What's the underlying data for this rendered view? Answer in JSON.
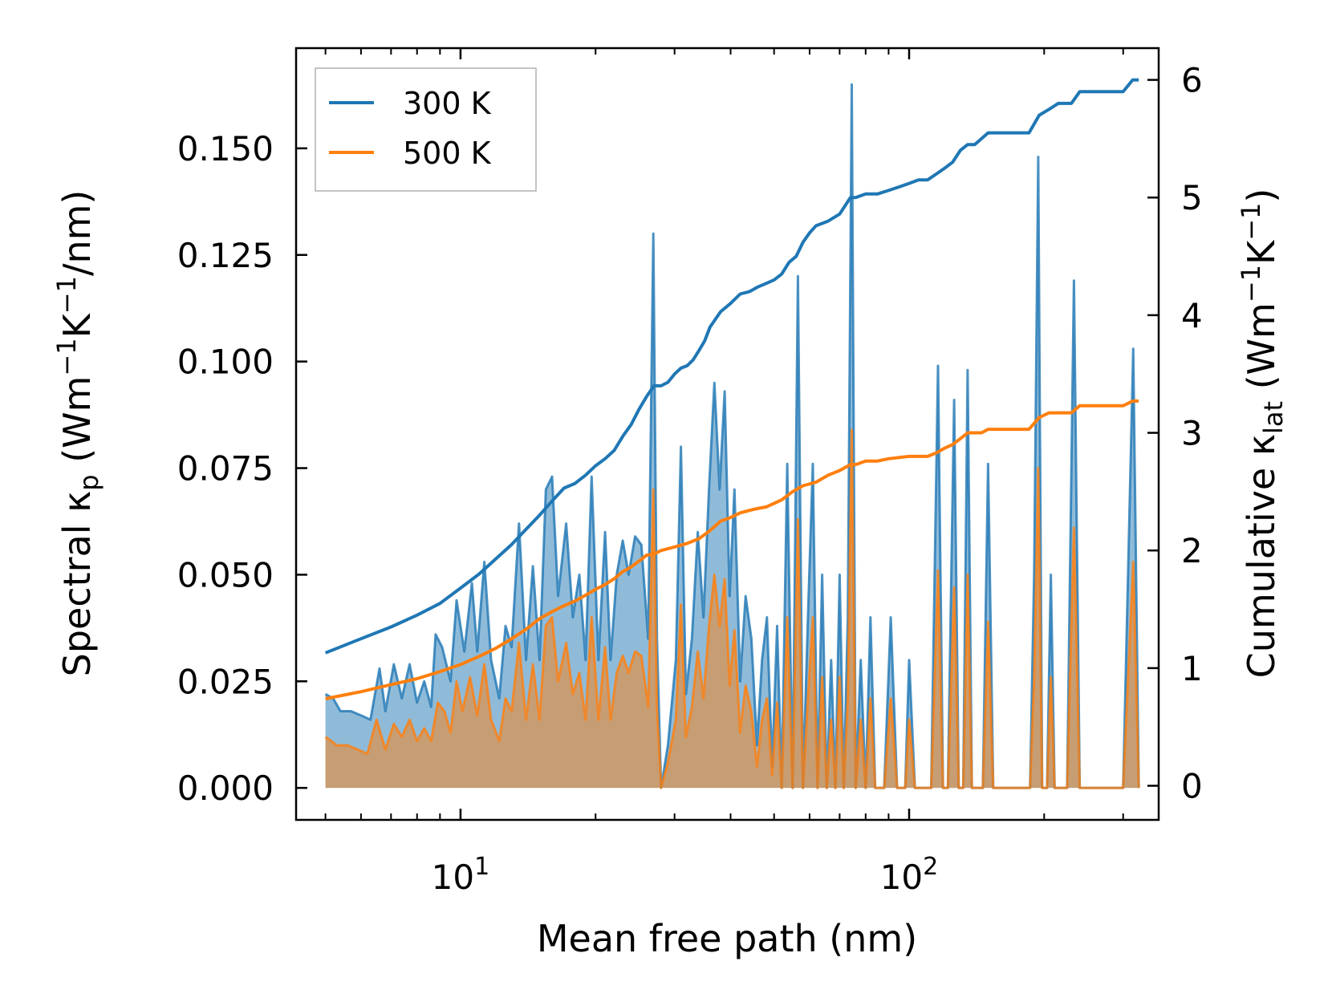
{
  "chart_data": {
    "type": "line",
    "xscale": "log",
    "xlabel": "Mean free path (nm)",
    "ylabel_left": {
      "pre": "Spectral κ",
      "sub": "p",
      "post": " (Wm",
      "sup1": "−1",
      "mid": "K",
      "sup2": "−1",
      "end": "/nm)"
    },
    "ylabel_right": {
      "pre": "Cumulative κ",
      "sub": "lat",
      "post": " (Wm",
      "sup1": "−1",
      "mid": "K",
      "sup2": "−1",
      "end": ")"
    },
    "xlim": [
      4.3,
      360
    ],
    "ylim_left": [
      -0.0075,
      0.1735
    ],
    "ylim_right": [
      -0.29,
      6.27
    ],
    "yticks_left": [
      "0.000",
      "0.025",
      "0.050",
      "0.075",
      "0.100",
      "0.125",
      "0.150"
    ],
    "yticks_left_values": [
      0,
      0.025,
      0.05,
      0.075,
      0.1,
      0.125,
      0.15
    ],
    "yticks_right": [
      "0",
      "1",
      "2",
      "3",
      "4",
      "5",
      "6"
    ],
    "yticks_right_values": [
      0,
      1,
      2,
      3,
      4,
      5,
      6
    ],
    "xticks_major": [
      {
        "base": "10",
        "exp": "1",
        "value": 10
      },
      {
        "base": "10",
        "exp": "2",
        "value": 100
      }
    ],
    "legend": {
      "location": "upper-left",
      "entries": [
        {
          "label": "300 K",
          "color": "#1f77b4"
        },
        {
          "label": "500 K",
          "color": "#ff7f0e"
        }
      ]
    },
    "colors": {
      "blue": "#1f77b4",
      "orange": "#ff7f0e",
      "blue_fill": "#1f77b4",
      "orange_fill": "#ff7f0e"
    },
    "spectral_300K": [
      [
        5.0,
        0.022
      ],
      [
        5.2,
        0.021
      ],
      [
        5.4,
        0.018
      ],
      [
        5.7,
        0.018
      ],
      [
        6.0,
        0.017
      ],
      [
        6.3,
        0.016
      ],
      [
        6.6,
        0.028
      ],
      [
        6.8,
        0.018
      ],
      [
        7.1,
        0.029
      ],
      [
        7.4,
        0.021
      ],
      [
        7.7,
        0.029
      ],
      [
        8.0,
        0.02
      ],
      [
        8.3,
        0.025
      ],
      [
        8.6,
        0.019
      ],
      [
        8.8,
        0.036
      ],
      [
        9.1,
        0.033
      ],
      [
        9.5,
        0.025
      ],
      [
        9.8,
        0.044
      ],
      [
        10.2,
        0.032
      ],
      [
        10.6,
        0.048
      ],
      [
        10.9,
        0.032
      ],
      [
        11.3,
        0.053
      ],
      [
        11.7,
        0.03
      ],
      [
        12.2,
        0.021
      ],
      [
        12.6,
        0.038
      ],
      [
        13.0,
        0.033
      ],
      [
        13.5,
        0.062
      ],
      [
        14.0,
        0.03
      ],
      [
        14.5,
        0.052
      ],
      [
        15.0,
        0.03
      ],
      [
        15.5,
        0.07
      ],
      [
        16.0,
        0.073
      ],
      [
        16.5,
        0.045
      ],
      [
        17.2,
        0.062
      ],
      [
        17.8,
        0.04
      ],
      [
        18.4,
        0.05
      ],
      [
        19.0,
        0.03
      ],
      [
        19.6,
        0.073
      ],
      [
        20.3,
        0.03
      ],
      [
        21.0,
        0.06
      ],
      [
        21.6,
        0.03
      ],
      [
        22.3,
        0.05
      ],
      [
        23.0,
        0.058
      ],
      [
        23.7,
        0.05
      ],
      [
        24.5,
        0.059
      ],
      [
        25.3,
        0.057
      ],
      [
        26.2,
        0.035
      ],
      [
        26.9,
        0.13
      ],
      [
        27.4,
        0.035
      ],
      [
        28.0,
        0.0
      ],
      [
        29.0,
        0.01
      ],
      [
        30.2,
        0.03
      ],
      [
        31.0,
        0.08
      ],
      [
        31.8,
        0.022
      ],
      [
        32.8,
        0.035
      ],
      [
        33.8,
        0.06
      ],
      [
        34.8,
        0.04
      ],
      [
        35.8,
        0.07
      ],
      [
        36.8,
        0.095
      ],
      [
        37.8,
        0.07
      ],
      [
        38.8,
        0.093
      ],
      [
        39.8,
        0.045
      ],
      [
        40.8,
        0.07
      ],
      [
        42.0,
        0.025
      ],
      [
        43.2,
        0.045
      ],
      [
        44.5,
        0.035
      ],
      [
        45.8,
        0.01
      ],
      [
        47.0,
        0.03
      ],
      [
        48.2,
        0.04
      ],
      [
        49.5,
        0.005
      ],
      [
        50.8,
        0.038
      ],
      [
        52.0,
        0.0
      ],
      [
        53.5,
        0.076
      ],
      [
        55.0,
        0.0
      ],
      [
        56.5,
        0.12
      ],
      [
        58.0,
        0.0
      ],
      [
        59.5,
        0.04
      ],
      [
        61.0,
        0.076
      ],
      [
        62.5,
        0.0
      ],
      [
        64.0,
        0.05
      ],
      [
        65.5,
        0.0
      ],
      [
        67.0,
        0.03
      ],
      [
        68.5,
        0.0
      ],
      [
        70.0,
        0.05
      ],
      [
        71.5,
        0.0
      ],
      [
        73.0,
        0.04
      ],
      [
        74.5,
        0.165
      ],
      [
        76.0,
        0.0
      ],
      [
        78.0,
        0.03
      ],
      [
        80.0,
        0.0
      ],
      [
        82.0,
        0.04
      ],
      [
        84.0,
        0.0
      ],
      [
        88.0,
        0.0
      ],
      [
        91.0,
        0.04
      ],
      [
        94.0,
        0.0
      ],
      [
        98.0,
        0.0
      ],
      [
        100.0,
        0.03
      ],
      [
        103.0,
        0.0
      ],
      [
        108.0,
        0.0
      ],
      [
        112.0,
        0.0
      ],
      [
        116.0,
        0.099
      ],
      [
        119.0,
        0.0
      ],
      [
        122.0,
        0.0
      ],
      [
        126.0,
        0.091
      ],
      [
        129.0,
        0.0
      ],
      [
        132.0,
        0.0
      ],
      [
        135.0,
        0.098
      ],
      [
        138.0,
        0.0
      ],
      [
        146.0,
        0.0
      ],
      [
        150.0,
        0.076
      ],
      [
        154.0,
        0.0
      ],
      [
        170.0,
        0.0
      ],
      [
        186.0,
        0.0
      ],
      [
        190.0,
        0.05
      ],
      [
        194.0,
        0.148
      ],
      [
        198.0,
        0.0
      ],
      [
        203.0,
        0.0
      ],
      [
        207.0,
        0.05
      ],
      [
        211.0,
        0.0
      ],
      [
        225.0,
        0.0
      ],
      [
        233.0,
        0.119
      ],
      [
        240.0,
        0.0
      ],
      [
        250.0,
        0.0
      ],
      [
        300.0,
        0.0
      ],
      [
        316.0,
        0.103
      ],
      [
        325.0,
        0.0
      ]
    ],
    "spectral_500K": [
      [
        5.0,
        0.012
      ],
      [
        5.3,
        0.01
      ],
      [
        5.6,
        0.01
      ],
      [
        5.9,
        0.009
      ],
      [
        6.2,
        0.008
      ],
      [
        6.5,
        0.016
      ],
      [
        6.8,
        0.009
      ],
      [
        7.1,
        0.015
      ],
      [
        7.4,
        0.012
      ],
      [
        7.7,
        0.016
      ],
      [
        8.0,
        0.011
      ],
      [
        8.3,
        0.014
      ],
      [
        8.6,
        0.011
      ],
      [
        8.9,
        0.02
      ],
      [
        9.2,
        0.018
      ],
      [
        9.5,
        0.013
      ],
      [
        9.8,
        0.025
      ],
      [
        10.1,
        0.018
      ],
      [
        10.5,
        0.026
      ],
      [
        10.9,
        0.017
      ],
      [
        11.3,
        0.029
      ],
      [
        11.7,
        0.016
      ],
      [
        12.2,
        0.011
      ],
      [
        12.6,
        0.021
      ],
      [
        13.0,
        0.018
      ],
      [
        13.5,
        0.034
      ],
      [
        14.0,
        0.016
      ],
      [
        14.5,
        0.029
      ],
      [
        15.0,
        0.016
      ],
      [
        15.5,
        0.038
      ],
      [
        16.0,
        0.04
      ],
      [
        16.5,
        0.025
      ],
      [
        17.2,
        0.034
      ],
      [
        17.8,
        0.022
      ],
      [
        18.4,
        0.027
      ],
      [
        19.0,
        0.016
      ],
      [
        19.6,
        0.04
      ],
      [
        20.3,
        0.016
      ],
      [
        21.0,
        0.033
      ],
      [
        21.6,
        0.016
      ],
      [
        22.3,
        0.027
      ],
      [
        23.0,
        0.031
      ],
      [
        23.7,
        0.027
      ],
      [
        24.5,
        0.032
      ],
      [
        25.3,
        0.031
      ],
      [
        26.2,
        0.019
      ],
      [
        26.9,
        0.07
      ],
      [
        27.4,
        0.019
      ],
      [
        28.0,
        0.0
      ],
      [
        29.0,
        0.006
      ],
      [
        30.2,
        0.016
      ],
      [
        31.0,
        0.043
      ],
      [
        31.8,
        0.012
      ],
      [
        32.8,
        0.019
      ],
      [
        33.8,
        0.032
      ],
      [
        34.8,
        0.021
      ],
      [
        35.8,
        0.038
      ],
      [
        36.8,
        0.05
      ],
      [
        37.8,
        0.038
      ],
      [
        38.8,
        0.049
      ],
      [
        39.8,
        0.024
      ],
      [
        40.8,
        0.037
      ],
      [
        42.0,
        0.013
      ],
      [
        43.2,
        0.024
      ],
      [
        44.5,
        0.018
      ],
      [
        45.8,
        0.005
      ],
      [
        47.0,
        0.016
      ],
      [
        48.2,
        0.021
      ],
      [
        49.5,
        0.003
      ],
      [
        50.8,
        0.02
      ],
      [
        52.0,
        0.0
      ],
      [
        53.5,
        0.04
      ],
      [
        55.0,
        0.0
      ],
      [
        56.5,
        0.063
      ],
      [
        58.0,
        0.0
      ],
      [
        59.5,
        0.021
      ],
      [
        61.0,
        0.04
      ],
      [
        62.5,
        0.0
      ],
      [
        64.0,
        0.026
      ],
      [
        65.5,
        0.0
      ],
      [
        67.0,
        0.016
      ],
      [
        68.5,
        0.0
      ],
      [
        70.0,
        0.026
      ],
      [
        71.5,
        0.0
      ],
      [
        73.0,
        0.021
      ],
      [
        74.5,
        0.084
      ],
      [
        76.0,
        0.0
      ],
      [
        78.0,
        0.016
      ],
      [
        80.0,
        0.0
      ],
      [
        82.0,
        0.021
      ],
      [
        84.0,
        0.0
      ],
      [
        88.0,
        0.0
      ],
      [
        91.0,
        0.021
      ],
      [
        94.0,
        0.0
      ],
      [
        98.0,
        0.0
      ],
      [
        100.0,
        0.016
      ],
      [
        103.0,
        0.0
      ],
      [
        108.0,
        0.0
      ],
      [
        112.0,
        0.0
      ],
      [
        116.0,
        0.051
      ],
      [
        119.0,
        0.0
      ],
      [
        122.0,
        0.0
      ],
      [
        126.0,
        0.047
      ],
      [
        129.0,
        0.0
      ],
      [
        132.0,
        0.0
      ],
      [
        135.0,
        0.05
      ],
      [
        138.0,
        0.0
      ],
      [
        146.0,
        0.0
      ],
      [
        150.0,
        0.039
      ],
      [
        154.0,
        0.0
      ],
      [
        170.0,
        0.0
      ],
      [
        186.0,
        0.0
      ],
      [
        190.0,
        0.026
      ],
      [
        194.0,
        0.075
      ],
      [
        198.0,
        0.0
      ],
      [
        203.0,
        0.0
      ],
      [
        207.0,
        0.026
      ],
      [
        211.0,
        0.0
      ],
      [
        225.0,
        0.0
      ],
      [
        233.0,
        0.061
      ],
      [
        240.0,
        0.0
      ],
      [
        250.0,
        0.0
      ],
      [
        300.0,
        0.0
      ],
      [
        316.0,
        0.053
      ],
      [
        325.0,
        0.0
      ]
    ],
    "cumulative_300K": [
      [
        5.0,
        1.13
      ],
      [
        6.0,
        1.25
      ],
      [
        7.0,
        1.35
      ],
      [
        8.0,
        1.45
      ],
      [
        9.0,
        1.55
      ],
      [
        10.0,
        1.68
      ],
      [
        11.0,
        1.8
      ],
      [
        12.0,
        1.93
      ],
      [
        13.0,
        2.05
      ],
      [
        14.0,
        2.18
      ],
      [
        15.0,
        2.3
      ],
      [
        16.0,
        2.42
      ],
      [
        17.0,
        2.53
      ],
      [
        18.0,
        2.57
      ],
      [
        19.0,
        2.64
      ],
      [
        20.0,
        2.72
      ],
      [
        21.0,
        2.78
      ],
      [
        22.0,
        2.85
      ],
      [
        23.0,
        2.97
      ],
      [
        24.0,
        3.07
      ],
      [
        25.0,
        3.2
      ],
      [
        26.0,
        3.31
      ],
      [
        27.0,
        3.4
      ],
      [
        28.0,
        3.4
      ],
      [
        29.0,
        3.43
      ],
      [
        30.0,
        3.5
      ],
      [
        31.0,
        3.55
      ],
      [
        32.0,
        3.57
      ],
      [
        33.0,
        3.62
      ],
      [
        34.0,
        3.7
      ],
      [
        35.0,
        3.78
      ],
      [
        36.0,
        3.9
      ],
      [
        38.0,
        4.03
      ],
      [
        40.0,
        4.1
      ],
      [
        42.0,
        4.18
      ],
      [
        44.0,
        4.2
      ],
      [
        46.0,
        4.24
      ],
      [
        48.0,
        4.27
      ],
      [
        50.0,
        4.3
      ],
      [
        52.0,
        4.35
      ],
      [
        54.0,
        4.45
      ],
      [
        56.0,
        4.5
      ],
      [
        58.0,
        4.62
      ],
      [
        60.0,
        4.7
      ],
      [
        62.0,
        4.76
      ],
      [
        64.0,
        4.78
      ],
      [
        66.0,
        4.8
      ],
      [
        70.0,
        4.86
      ],
      [
        74.0,
        5.0
      ],
      [
        76.0,
        5.0
      ],
      [
        80.0,
        5.03
      ],
      [
        85.0,
        5.03
      ],
      [
        90.0,
        5.06
      ],
      [
        95.0,
        5.09
      ],
      [
        100.0,
        5.12
      ],
      [
        105.0,
        5.15
      ],
      [
        110.0,
        5.15
      ],
      [
        115.0,
        5.2
      ],
      [
        120.0,
        5.25
      ],
      [
        125.0,
        5.3
      ],
      [
        130.0,
        5.4
      ],
      [
        135.0,
        5.45
      ],
      [
        140.0,
        5.45
      ],
      [
        150.0,
        5.55
      ],
      [
        160.0,
        5.55
      ],
      [
        170.0,
        5.55
      ],
      [
        185.0,
        5.55
      ],
      [
        195.0,
        5.7
      ],
      [
        205.0,
        5.75
      ],
      [
        215.0,
        5.8
      ],
      [
        230.0,
        5.8
      ],
      [
        240.0,
        5.9
      ],
      [
        260.0,
        5.9
      ],
      [
        300.0,
        5.9
      ],
      [
        315.0,
        6.0
      ],
      [
        325.0,
        6.0
      ]
    ],
    "cumulative_500K": [
      [
        5.0,
        0.74
      ],
      [
        6.0,
        0.8
      ],
      [
        7.0,
        0.86
      ],
      [
        8.0,
        0.91
      ],
      [
        9.0,
        0.97
      ],
      [
        10.0,
        1.03
      ],
      [
        11.0,
        1.1
      ],
      [
        12.0,
        1.17
      ],
      [
        13.0,
        1.25
      ],
      [
        14.0,
        1.33
      ],
      [
        15.0,
        1.42
      ],
      [
        16.0,
        1.48
      ],
      [
        17.0,
        1.53
      ],
      [
        18.0,
        1.57
      ],
      [
        19.0,
        1.62
      ],
      [
        20.0,
        1.67
      ],
      [
        21.0,
        1.71
      ],
      [
        22.0,
        1.76
      ],
      [
        23.0,
        1.82
      ],
      [
        24.0,
        1.86
      ],
      [
        25.0,
        1.91
      ],
      [
        26.0,
        1.96
      ],
      [
        27.0,
        1.97
      ],
      [
        28.0,
        2.0
      ],
      [
        30.0,
        2.03
      ],
      [
        32.0,
        2.06
      ],
      [
        34.0,
        2.1
      ],
      [
        36.0,
        2.17
      ],
      [
        38.0,
        2.25
      ],
      [
        40.0,
        2.28
      ],
      [
        42.0,
        2.32
      ],
      [
        45.0,
        2.35
      ],
      [
        48.0,
        2.37
      ],
      [
        50.0,
        2.4
      ],
      [
        52.0,
        2.43
      ],
      [
        55.0,
        2.5
      ],
      [
        58.0,
        2.55
      ],
      [
        62.0,
        2.58
      ],
      [
        66.0,
        2.64
      ],
      [
        70.0,
        2.68
      ],
      [
        74.0,
        2.73
      ],
      [
        76.0,
        2.73
      ],
      [
        80.0,
        2.76
      ],
      [
        85.0,
        2.76
      ],
      [
        90.0,
        2.78
      ],
      [
        100.0,
        2.8
      ],
      [
        110.0,
        2.8
      ],
      [
        115.0,
        2.83
      ],
      [
        120.0,
        2.87
      ],
      [
        125.0,
        2.9
      ],
      [
        130.0,
        2.95
      ],
      [
        135.0,
        3.0
      ],
      [
        145.0,
        3.0
      ],
      [
        150.0,
        3.03
      ],
      [
        170.0,
        3.03
      ],
      [
        185.0,
        3.03
      ],
      [
        195.0,
        3.13
      ],
      [
        205.0,
        3.17
      ],
      [
        215.0,
        3.17
      ],
      [
        230.0,
        3.17
      ],
      [
        240.0,
        3.23
      ],
      [
        260.0,
        3.23
      ],
      [
        300.0,
        3.23
      ],
      [
        315.0,
        3.27
      ],
      [
        325.0,
        3.27
      ]
    ]
  }
}
